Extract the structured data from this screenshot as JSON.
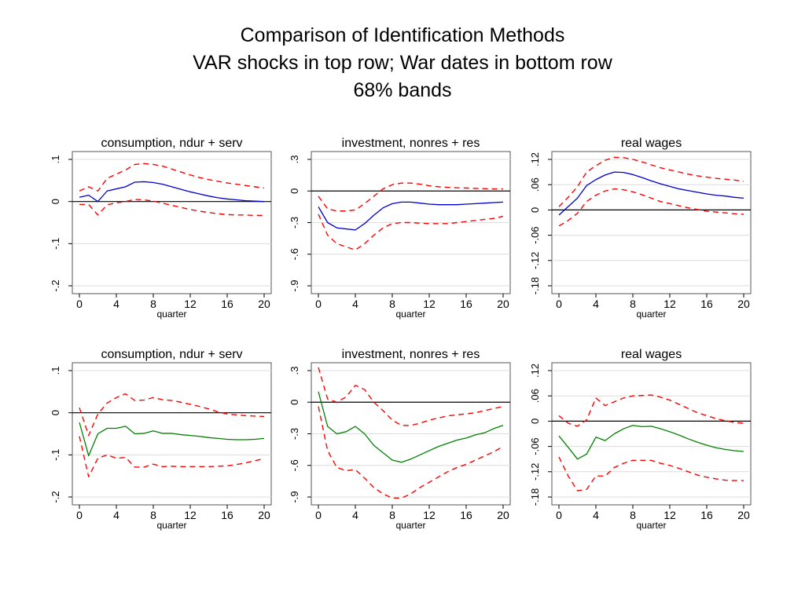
{
  "title_lines": [
    "Comparison of Identification Methods",
    "VAR shocks in top row; War dates in bottom row",
    "68% bands"
  ],
  "colors": {
    "center_top": "#0000cc",
    "center_bottom": "#008000",
    "bands": "#ff0000",
    "zero_line": "#000000",
    "grid": "#dcdcdc"
  },
  "chart_data": [
    {
      "type": "line",
      "title": "consumption, ndur + serv",
      "xlabel": "quarter",
      "xticks": [
        "0",
        "4",
        "8",
        "12",
        "16",
        "20"
      ],
      "xlim": [
        0,
        20
      ],
      "ylim": [
        -0.2,
        0.1
      ],
      "yticks": [
        {
          "v": -0.2,
          "label": "-.2"
        },
        {
          "v": -0.1,
          "label": "-.1"
        },
        {
          "v": 0,
          "label": "0"
        },
        {
          "v": 0.1,
          "label": ".1"
        }
      ],
      "x": [
        0,
        1,
        2,
        3,
        4,
        5,
        6,
        7,
        8,
        9,
        10,
        11,
        12,
        13,
        14,
        15,
        16,
        17,
        18,
        19,
        20
      ],
      "series": [
        {
          "role": "center",
          "values": [
            0.01,
            0.015,
            0.0,
            0.025,
            0.03,
            0.035,
            0.046,
            0.047,
            0.045,
            0.041,
            0.035,
            0.029,
            0.023,
            0.018,
            0.013,
            0.009,
            0.006,
            0.004,
            0.002,
            0.001,
            0.0
          ]
        },
        {
          "role": "upper",
          "values": [
            0.025,
            0.035,
            0.025,
            0.055,
            0.065,
            0.075,
            0.088,
            0.09,
            0.088,
            0.084,
            0.077,
            0.07,
            0.063,
            0.057,
            0.052,
            0.048,
            0.044,
            0.041,
            0.038,
            0.035,
            0.032
          ]
        },
        {
          "role": "lower",
          "values": [
            -0.007,
            -0.007,
            -0.032,
            -0.008,
            -0.003,
            0.0,
            0.005,
            0.004,
            0.001,
            -0.004,
            -0.009,
            -0.014,
            -0.019,
            -0.023,
            -0.026,
            -0.029,
            -0.031,
            -0.032,
            -0.032,
            -0.033,
            -0.033
          ]
        }
      ]
    },
    {
      "type": "line",
      "title": "investment, nonres + res",
      "xlabel": "quarter",
      "xticks": [
        "0",
        "4",
        "8",
        "12",
        "16",
        "20"
      ],
      "xlim": [
        0,
        20
      ],
      "ylim": [
        -0.9,
        0.3
      ],
      "yticks": [
        {
          "v": -0.9,
          "label": "-.9"
        },
        {
          "v": -0.6,
          "label": "-.6"
        },
        {
          "v": -0.3,
          "label": "-.3"
        },
        {
          "v": 0,
          "label": "0"
        },
        {
          "v": 0.3,
          "label": ".3"
        }
      ],
      "x": [
        0,
        1,
        2,
        3,
        4,
        5,
        6,
        7,
        8,
        9,
        10,
        11,
        12,
        13,
        14,
        15,
        16,
        17,
        18,
        19,
        20
      ],
      "series": [
        {
          "role": "center",
          "values": [
            -0.15,
            -0.3,
            -0.35,
            -0.36,
            -0.37,
            -0.31,
            -0.23,
            -0.16,
            -0.12,
            -0.105,
            -0.105,
            -0.115,
            -0.125,
            -0.13,
            -0.13,
            -0.13,
            -0.125,
            -0.12,
            -0.115,
            -0.11,
            -0.105
          ]
        },
        {
          "role": "upper",
          "values": [
            -0.05,
            -0.17,
            -0.19,
            -0.19,
            -0.18,
            -0.12,
            -0.05,
            0.02,
            0.06,
            0.075,
            0.075,
            0.065,
            0.05,
            0.04,
            0.035,
            0.03,
            0.028,
            0.025,
            0.022,
            0.02,
            0.02
          ]
        },
        {
          "role": "lower",
          "values": [
            -0.22,
            -0.42,
            -0.5,
            -0.53,
            -0.56,
            -0.5,
            -0.42,
            -0.35,
            -0.31,
            -0.3,
            -0.3,
            -0.305,
            -0.31,
            -0.31,
            -0.31,
            -0.3,
            -0.29,
            -0.28,
            -0.27,
            -0.26,
            -0.24
          ]
        }
      ]
    },
    {
      "type": "line",
      "title": "real wages",
      "xlabel": "quarter",
      "xticks": [
        "0",
        "4",
        "8",
        "12",
        "16",
        "20"
      ],
      "xlim": [
        0,
        20
      ],
      "ylim": [
        -0.18,
        0.12
      ],
      "yticks": [
        {
          "v": -0.18,
          "label": "-.18"
        },
        {
          "v": -0.12,
          "label": "-.12"
        },
        {
          "v": -0.06,
          "label": "-.06"
        },
        {
          "v": 0,
          "label": "0"
        },
        {
          "v": 0.06,
          "label": ".06"
        },
        {
          "v": 0.12,
          "label": ".12"
        }
      ],
      "x": [
        0,
        1,
        2,
        3,
        4,
        5,
        6,
        7,
        8,
        9,
        10,
        11,
        12,
        13,
        14,
        15,
        16,
        17,
        18,
        19,
        20
      ],
      "series": [
        {
          "role": "center",
          "values": [
            -0.012,
            0.008,
            0.028,
            0.058,
            0.072,
            0.083,
            0.09,
            0.089,
            0.084,
            0.077,
            0.069,
            0.062,
            0.056,
            0.05,
            0.046,
            0.042,
            0.038,
            0.035,
            0.033,
            0.03,
            0.028
          ]
        },
        {
          "role": "upper",
          "values": [
            0.008,
            0.03,
            0.055,
            0.09,
            0.105,
            0.118,
            0.125,
            0.124,
            0.12,
            0.114,
            0.107,
            0.1,
            0.095,
            0.09,
            0.085,
            0.081,
            0.078,
            0.075,
            0.073,
            0.071,
            0.068
          ]
        },
        {
          "role": "lower",
          "values": [
            -0.038,
            -0.025,
            -0.008,
            0.02,
            0.035,
            0.045,
            0.05,
            0.048,
            0.043,
            0.036,
            0.028,
            0.02,
            0.015,
            0.01,
            0.005,
            0.001,
            -0.003,
            -0.005,
            -0.007,
            -0.009,
            -0.01
          ]
        }
      ]
    },
    {
      "type": "line",
      "title": "consumption, ndur + serv",
      "xlabel": "quarter",
      "xticks": [
        "0",
        "4",
        "8",
        "12",
        "16",
        "20"
      ],
      "xlim": [
        0,
        20
      ],
      "ylim": [
        -0.2,
        0.1
      ],
      "yticks": [
        {
          "v": -0.2,
          "label": "-.2"
        },
        {
          "v": -0.1,
          "label": "-.1"
        },
        {
          "v": 0,
          "label": "0"
        },
        {
          "v": 0.1,
          "label": ".1"
        }
      ],
      "x": [
        0,
        1,
        2,
        3,
        4,
        5,
        6,
        7,
        8,
        9,
        10,
        11,
        12,
        13,
        14,
        15,
        16,
        17,
        18,
        19,
        20
      ],
      "series": [
        {
          "role": "center",
          "values": [
            -0.023,
            -0.102,
            -0.05,
            -0.037,
            -0.037,
            -0.032,
            -0.05,
            -0.049,
            -0.043,
            -0.049,
            -0.049,
            -0.052,
            -0.054,
            -0.056,
            -0.059,
            -0.061,
            -0.063,
            -0.064,
            -0.064,
            -0.063,
            -0.061
          ]
        },
        {
          "role": "upper",
          "values": [
            0.012,
            -0.054,
            -0.003,
            0.023,
            0.036,
            0.045,
            0.029,
            0.03,
            0.036,
            0.031,
            0.029,
            0.025,
            0.02,
            0.015,
            0.009,
            0.002,
            -0.003,
            -0.005,
            -0.007,
            -0.008,
            -0.009
          ]
        },
        {
          "role": "lower",
          "values": [
            -0.056,
            -0.152,
            -0.108,
            -0.1,
            -0.108,
            -0.106,
            -0.129,
            -0.129,
            -0.122,
            -0.128,
            -0.127,
            -0.128,
            -0.128,
            -0.128,
            -0.128,
            -0.127,
            -0.126,
            -0.123,
            -0.119,
            -0.114,
            -0.109
          ]
        }
      ]
    },
    {
      "type": "line",
      "title": "investment, nonres + res",
      "xlabel": "quarter",
      "xticks": [
        "0",
        "4",
        "8",
        "12",
        "16",
        "20"
      ],
      "xlim": [
        0,
        20
      ],
      "ylim": [
        -0.9,
        0.3
      ],
      "yticks": [
        {
          "v": -0.9,
          "label": "-.9"
        },
        {
          "v": -0.6,
          "label": "-.6"
        },
        {
          "v": -0.3,
          "label": "-.3"
        },
        {
          "v": 0,
          "label": "0"
        },
        {
          "v": 0.3,
          "label": ".3"
        }
      ],
      "x": [
        0,
        1,
        2,
        3,
        4,
        5,
        6,
        7,
        8,
        9,
        10,
        11,
        12,
        13,
        14,
        15,
        16,
        17,
        18,
        19,
        20
      ],
      "series": [
        {
          "role": "center",
          "values": [
            0.1,
            -0.23,
            -0.3,
            -0.28,
            -0.23,
            -0.3,
            -0.41,
            -0.48,
            -0.55,
            -0.57,
            -0.54,
            -0.5,
            -0.46,
            -0.42,
            -0.39,
            -0.36,
            -0.34,
            -0.31,
            -0.29,
            -0.25,
            -0.22
          ]
        },
        {
          "role": "upper",
          "values": [
            0.33,
            0.03,
            0.0,
            0.05,
            0.16,
            0.12,
            0.0,
            -0.08,
            -0.17,
            -0.22,
            -0.22,
            -0.2,
            -0.17,
            -0.15,
            -0.13,
            -0.12,
            -0.11,
            -0.1,
            -0.08,
            -0.06,
            -0.04
          ]
        },
        {
          "role": "lower",
          "values": [
            -0.04,
            -0.46,
            -0.62,
            -0.65,
            -0.64,
            -0.72,
            -0.81,
            -0.87,
            -0.91,
            -0.91,
            -0.87,
            -0.81,
            -0.76,
            -0.71,
            -0.66,
            -0.62,
            -0.59,
            -0.55,
            -0.51,
            -0.47,
            -0.42
          ]
        }
      ]
    },
    {
      "type": "line",
      "title": "real wages",
      "xlabel": "quarter",
      "xticks": [
        "0",
        "4",
        "8",
        "12",
        "16",
        "20"
      ],
      "xlim": [
        0,
        20
      ],
      "ylim": [
        -0.18,
        0.12
      ],
      "yticks": [
        {
          "v": -0.18,
          "label": "-.18"
        },
        {
          "v": -0.12,
          "label": "-.12"
        },
        {
          "v": -0.06,
          "label": "-.06"
        },
        {
          "v": 0,
          "label": "0"
        },
        {
          "v": 0.06,
          "label": ".06"
        },
        {
          "v": 0.12,
          "label": ".12"
        }
      ],
      "x": [
        0,
        1,
        2,
        3,
        4,
        5,
        6,
        7,
        8,
        9,
        10,
        11,
        12,
        13,
        14,
        15,
        16,
        17,
        18,
        19,
        20
      ],
      "series": [
        {
          "role": "center",
          "values": [
            -0.035,
            -0.062,
            -0.09,
            -0.078,
            -0.038,
            -0.046,
            -0.03,
            -0.018,
            -0.01,
            -0.013,
            -0.012,
            -0.018,
            -0.025,
            -0.033,
            -0.042,
            -0.05,
            -0.057,
            -0.063,
            -0.067,
            -0.07,
            -0.072
          ]
        },
        {
          "role": "upper",
          "values": [
            0.013,
            -0.005,
            -0.012,
            0.003,
            0.055,
            0.037,
            0.046,
            0.055,
            0.06,
            0.061,
            0.062,
            0.057,
            0.05,
            0.04,
            0.03,
            0.02,
            0.013,
            0.006,
            0.001,
            -0.003,
            -0.005
          ]
        },
        {
          "role": "lower",
          "values": [
            -0.085,
            -0.13,
            -0.165,
            -0.162,
            -0.13,
            -0.13,
            -0.11,
            -0.1,
            -0.093,
            -0.093,
            -0.093,
            -0.1,
            -0.105,
            -0.112,
            -0.12,
            -0.128,
            -0.133,
            -0.137,
            -0.14,
            -0.141,
            -0.141
          ]
        }
      ]
    }
  ]
}
